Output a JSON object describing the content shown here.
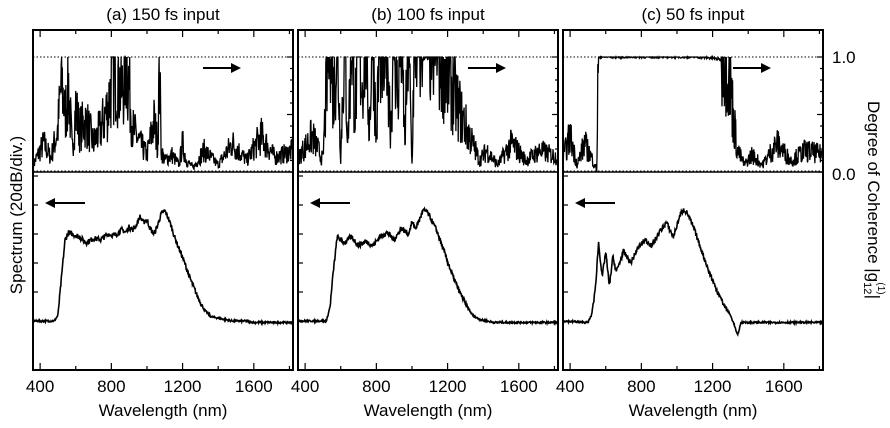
{
  "figure": {
    "left_ylabel": "Spectrum (20dB/div.)",
    "right_ylabel": "Degree of Coherence |g",
    "right_ylabel_sub": "12",
    "right_ylabel_sup": "(1)",
    "right_ylabel_close": "|",
    "right_ticks": [
      "1.0",
      "0.0"
    ]
  },
  "chart_data": [
    {
      "type": "line",
      "title": "(a) 150 fs input",
      "xlabel": "Wavelength (nm)",
      "xlim": [
        360,
        1820
      ],
      "xticks": [
        400,
        800,
        1200,
        1600
      ],
      "coherence_ylim": [
        0,
        1
      ],
      "spectrum_series": {
        "name": "Spectrum",
        "x": [
          360,
          480,
          500,
          520,
          540,
          560,
          580,
          620,
          660,
          700,
          740,
          780,
          820,
          860,
          880,
          900,
          920,
          940,
          960,
          980,
          1000,
          1020,
          1040,
          1060,
          1080,
          1100,
          1120,
          1140,
          1160,
          1200,
          1240,
          1280,
          1320,
          1360,
          1400,
          1440,
          1480,
          1520,
          1560,
          1600,
          1700,
          1820
        ],
        "y_div": [
          -4.0,
          -4.0,
          -3.8,
          -2.5,
          -1.2,
          -0.95,
          -1.0,
          -1.1,
          -1.3,
          -1.15,
          -1.2,
          -1.0,
          -1.05,
          -0.85,
          -0.95,
          -0.75,
          -0.85,
          -0.7,
          -0.4,
          -0.6,
          -0.5,
          -0.85,
          -1.0,
          -0.7,
          -0.3,
          -0.2,
          -0.45,
          -0.8,
          -1.2,
          -1.8,
          -2.5,
          -3.1,
          -3.6,
          -3.85,
          -3.9,
          -3.95,
          -4.0,
          -4.0,
          -4.0,
          -4.05,
          -4.05,
          -4.05
        ]
      },
      "coherence_series": {
        "name": "Degree of Coherence",
        "x": [
          360,
          420,
          460,
          500,
          520,
          540,
          560,
          580,
          600,
          620,
          660,
          700,
          740,
          780,
          820,
          840,
          860,
          880,
          900,
          920,
          960,
          1000,
          1040,
          1060,
          1070,
          1080,
          1100,
          1140,
          1180,
          1200,
          1220,
          1260,
          1320,
          1400,
          1480,
          1560,
          1640,
          1720,
          1820
        ],
        "y": [
          0.05,
          0.2,
          0.1,
          0.3,
          0.65,
          0.4,
          0.6,
          0.15,
          0.45,
          0.3,
          0.35,
          0.2,
          0.3,
          0.45,
          0.75,
          0.65,
          0.55,
          0.8,
          0.6,
          0.3,
          0.2,
          0.12,
          0.35,
          0.2,
          0.75,
          0.15,
          0.08,
          0.12,
          0.05,
          0.2,
          0.08,
          0.03,
          0.15,
          0.05,
          0.2,
          0.08,
          0.25,
          0.1,
          0.15
        ]
      }
    },
    {
      "type": "line",
      "title": "(b) 100 fs input",
      "xlabel": "Wavelength (nm)",
      "xlim": [
        360,
        1820
      ],
      "xticks": [
        400,
        800,
        1200,
        1600
      ],
      "coherence_ylim": [
        0,
        1
      ],
      "spectrum_series": {
        "name": "Spectrum",
        "x": [
          360,
          520,
          540,
          560,
          580,
          620,
          660,
          700,
          740,
          780,
          820,
          860,
          900,
          940,
          980,
          1000,
          1020,
          1040,
          1060,
          1080,
          1100,
          1140,
          1180,
          1220,
          1260,
          1300,
          1340,
          1380,
          1420,
          1460,
          1520,
          1600,
          1700,
          1820
        ],
        "y_div": [
          -4.0,
          -4.0,
          -3.5,
          -2.2,
          -1.1,
          -1.3,
          -1.1,
          -1.4,
          -1.25,
          -1.4,
          -1.1,
          -0.95,
          -1.2,
          -0.8,
          -1.0,
          -0.6,
          -0.8,
          -0.55,
          -0.2,
          -0.2,
          -0.4,
          -0.9,
          -1.6,
          -2.3,
          -2.9,
          -3.4,
          -3.8,
          -3.95,
          -4.0,
          -4.05,
          -4.05,
          -4.05,
          -4.05,
          -4.05
        ]
      },
      "coherence_series": {
        "name": "Degree of Coherence",
        "x": [
          360,
          440,
          500,
          520,
          540,
          560,
          580,
          600,
          620,
          640,
          660,
          680,
          700,
          720,
          740,
          760,
          780,
          800,
          820,
          840,
          860,
          880,
          900,
          920,
          940,
          960,
          980,
          1000,
          1010,
          1020,
          1040,
          1060,
          1080,
          1100,
          1140,
          1180,
          1220,
          1260,
          1300,
          1340,
          1380,
          1420,
          1480,
          1560,
          1640,
          1720,
          1820
        ],
        "y": [
          0.1,
          0.25,
          0.08,
          0.6,
          1.0,
          0.5,
          0.98,
          0.1,
          0.95,
          0.2,
          1.0,
          0.4,
          0.98,
          0.6,
          1.0,
          0.3,
          0.98,
          0.2,
          1.0,
          0.7,
          0.98,
          0.3,
          1.0,
          0.5,
          0.98,
          0.2,
          0.95,
          0.05,
          0.7,
          0.95,
          0.9,
          0.98,
          1.0,
          0.95,
          0.88,
          0.75,
          0.6,
          0.45,
          0.32,
          0.2,
          0.08,
          0.15,
          0.05,
          0.2,
          0.08,
          0.15,
          0.1
        ]
      }
    },
    {
      "type": "line",
      "title": "(c) 50 fs input",
      "xlabel": "Wavelength (nm)",
      "xlim": [
        360,
        1820
      ],
      "xticks": [
        400,
        800,
        1200,
        1600
      ],
      "coherence_ylim": [
        0,
        1
      ],
      "spectrum_series": {
        "name": "Spectrum",
        "x": [
          360,
          500,
          520,
          540,
          560,
          580,
          600,
          620,
          640,
          660,
          700,
          740,
          780,
          820,
          860,
          900,
          940,
          980,
          1000,
          1020,
          1040,
          1060,
          1100,
          1140,
          1180,
          1220,
          1260,
          1300,
          1320,
          1340,
          1360,
          1400,
          1500,
          1600,
          1700,
          1820
        ],
        "y_div": [
          -4.0,
          -4.05,
          -3.8,
          -3.0,
          -1.3,
          -2.5,
          -1.6,
          -2.8,
          -1.8,
          -2.3,
          -1.6,
          -2.0,
          -1.5,
          -1.2,
          -1.4,
          -0.95,
          -0.6,
          -1.1,
          -0.7,
          -0.3,
          -0.15,
          -0.3,
          -0.9,
          -1.6,
          -2.3,
          -2.9,
          -3.4,
          -3.8,
          -4.1,
          -4.5,
          -4.05,
          -4.05,
          -4.05,
          -4.05,
          -4.05,
          -4.05
        ]
      },
      "coherence_series": {
        "name": "Degree of Coherence",
        "x": [
          360,
          400,
          440,
          480,
          520,
          540,
          550,
          560,
          600,
          700,
          800,
          900,
          1000,
          1100,
          1200,
          1240,
          1260,
          1280,
          1300,
          1320,
          1340,
          1380,
          1420,
          1480,
          1560,
          1640,
          1720,
          1820
        ],
        "y": [
          0.1,
          0.25,
          0.05,
          0.2,
          0.1,
          0.05,
          0.0,
          1.0,
          1.0,
          1.0,
          1.0,
          1.0,
          1.0,
          1.0,
          0.99,
          0.98,
          0.95,
          0.85,
          0.6,
          0.35,
          0.15,
          0.05,
          0.12,
          0.05,
          0.2,
          0.08,
          0.15,
          0.12
        ]
      }
    }
  ]
}
